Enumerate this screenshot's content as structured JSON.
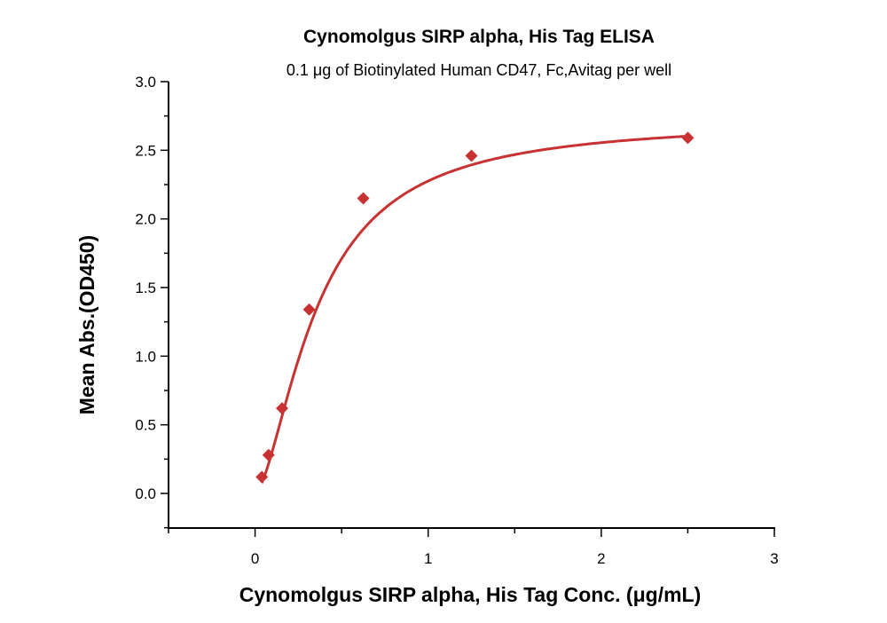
{
  "chart_data": {
    "type": "scatter",
    "title": "Cynomolgus SIRP alpha, His Tag ELISA",
    "subtitle": "0.1 μg of Biotinylated Human CD47, Fc,Avitag per well",
    "xlabel": "Cynomolgus SIRP alpha, His Tag Conc. (μg/mL)",
    "ylabel": "Mean Abs.(OD450)",
    "xlim": [
      -0.5,
      3
    ],
    "ylim": [
      -0.26,
      3.0
    ],
    "x_ticks": [
      "0",
      "1",
      "2",
      "3"
    ],
    "y_ticks": [
      "0.0",
      "0.5",
      "1.0",
      "1.5",
      "2.0",
      "2.5",
      "3.0"
    ],
    "grid": false,
    "color": "#c83232",
    "marker": "diamond",
    "fit_line": true,
    "x": [
      0.039,
      0.078,
      0.156,
      0.3125,
      0.625,
      1.25,
      2.5
    ],
    "y": [
      0.12,
      0.28,
      0.62,
      1.34,
      2.15,
      2.46,
      2.59
    ]
  }
}
